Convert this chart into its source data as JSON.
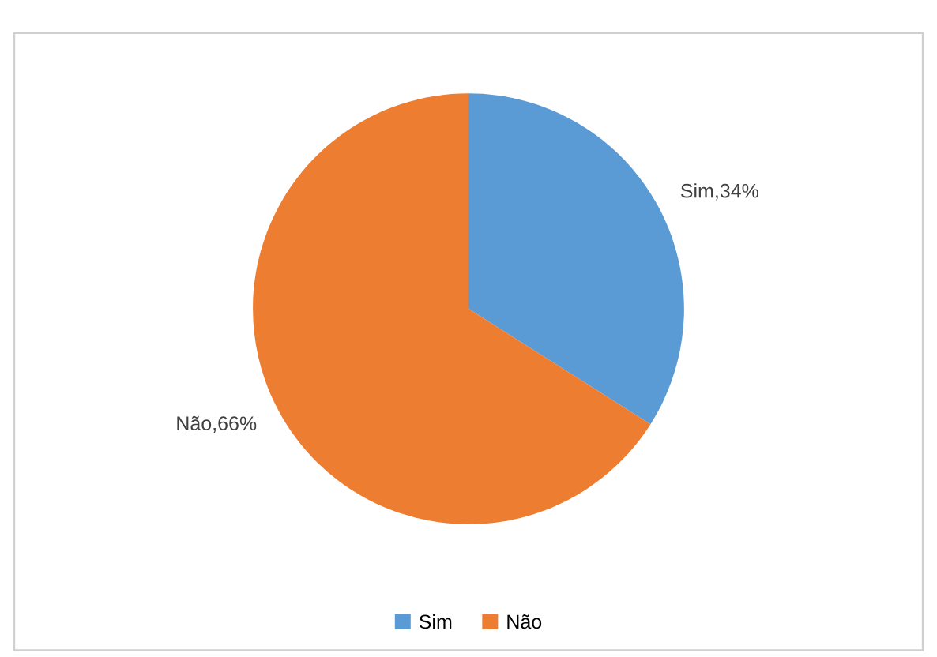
{
  "chart_data": {
    "type": "pie",
    "categories": [
      "Sim",
      "Não"
    ],
    "values": [
      34,
      66
    ],
    "colors": [
      "#5b9bd5",
      "#ed7d31"
    ],
    "value_labels": [
      "Sim,34%",
      "Não,66%"
    ],
    "legend": "bottom"
  }
}
